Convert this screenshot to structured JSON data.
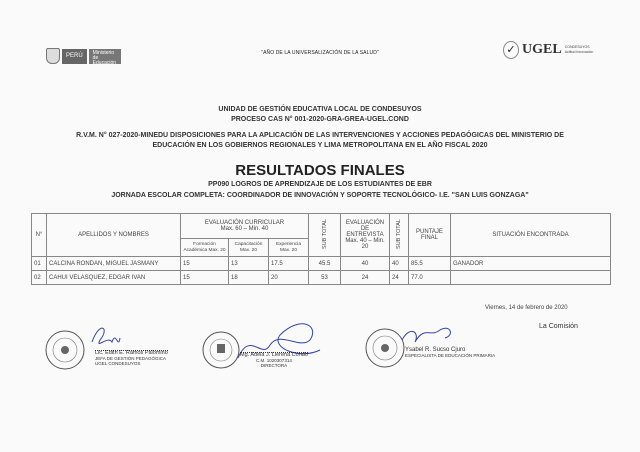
{
  "header": {
    "peru": "PERÚ",
    "ministry": "Ministerio de Educación",
    "motto": "\"AÑO DE LA UNIVERSALIZACIÓN DE LA SALUD\"",
    "ugel": "UGEL",
    "ugel_sub1": "CONDESUYOS",
    "ugel_sub2": "Actitud Innovación"
  },
  "doc": {
    "line1": "UNIDAD DE GESTIÓN EDUCATIVA LOCAL DE CONDESUYOS",
    "line2": "PROCESO CAS N° 001-2020-GRA-GREA-UGEL.COND",
    "line3": "R.V.M. N° 027-2020-MINEDU   DISPOSICIONES PARA LA APLICACIÓN DE LAS INTERVENCIONES Y ACCIONES PEDAGÓGICAS DEL MINISTERIO DE",
    "line4": "EDUCACIÓN EN LOS GOBIERNOS REGIONALES Y LIMA METROPOLITANA EN EL AÑO FISCAL 2020",
    "title": "RESULTADOS FINALES",
    "sub1": "PP090 LOGROS DE APRENDIZAJE DE LOS ESTUDIANTES DE EBR",
    "sub2": "JORNADA ESCOLAR COMPLETA:  COORDINADOR DE INNOVACIÓN Y SOPORTE TECNOLÓGICO- I.E. \"SAN LUIS GONZAGA\""
  },
  "table": {
    "h_no": "N°",
    "h_name": "APELLIDOS Y NOMBRES",
    "h_curr": "EVALUACIÓN CURRICULAR",
    "h_curr_range": "Max. 60 – Min. 40",
    "h_form": "Formación Académica Max. 20",
    "h_cap": "Capacitación Max. 20",
    "h_exp": "Experiencia Max. 20",
    "h_sub": "SUB TOTAL",
    "h_ent": "EVALUACIÓN DE ENTREVISTA",
    "h_ent_range": "Max. 40 – Min. 20",
    "h_sub2": "SUB TOTAL",
    "h_final": "PUNTAJE FINAL",
    "h_sit": "SITUACIÓN ENCONTRADA",
    "rows": [
      {
        "no": "01",
        "name": "CALCINA RONDAN, MIGUEL JASMANY",
        "form": "15",
        "cap": "13",
        "exp": "17.5",
        "sub": "45.5",
        "ent": "40",
        "sub2": "40",
        "final": "85.5",
        "sit": "GANADOR"
      },
      {
        "no": "02",
        "name": "CAHUI VELASQUEZ, EDGAR IVAN",
        "form": "15",
        "cap": "18",
        "exp": "20",
        "sub": "53",
        "ent": "24",
        "sub2": "24",
        "final": "77.0",
        "sit": ""
      }
    ]
  },
  "footer": {
    "date": "Viernes, 14 de febrero de 2020",
    "commission": "La Comisión",
    "signatures": [
      {
        "name": "Lic. Edith E. Ramos Palomino",
        "role": "JEFA DE GESTIÓN PEDAGÓGICA",
        "org": "UGEL CONDESUYOS"
      },
      {
        "name": "Mg. Adela J. Llerena Condo",
        "cm": "C.M. 1020307314",
        "role": "DIRECTORA"
      },
      {
        "name": "Ysabel R. Sucso Cjuro",
        "role": "ESPECIALISTA DE EDUCACIÓN PRIMARIA"
      }
    ]
  }
}
